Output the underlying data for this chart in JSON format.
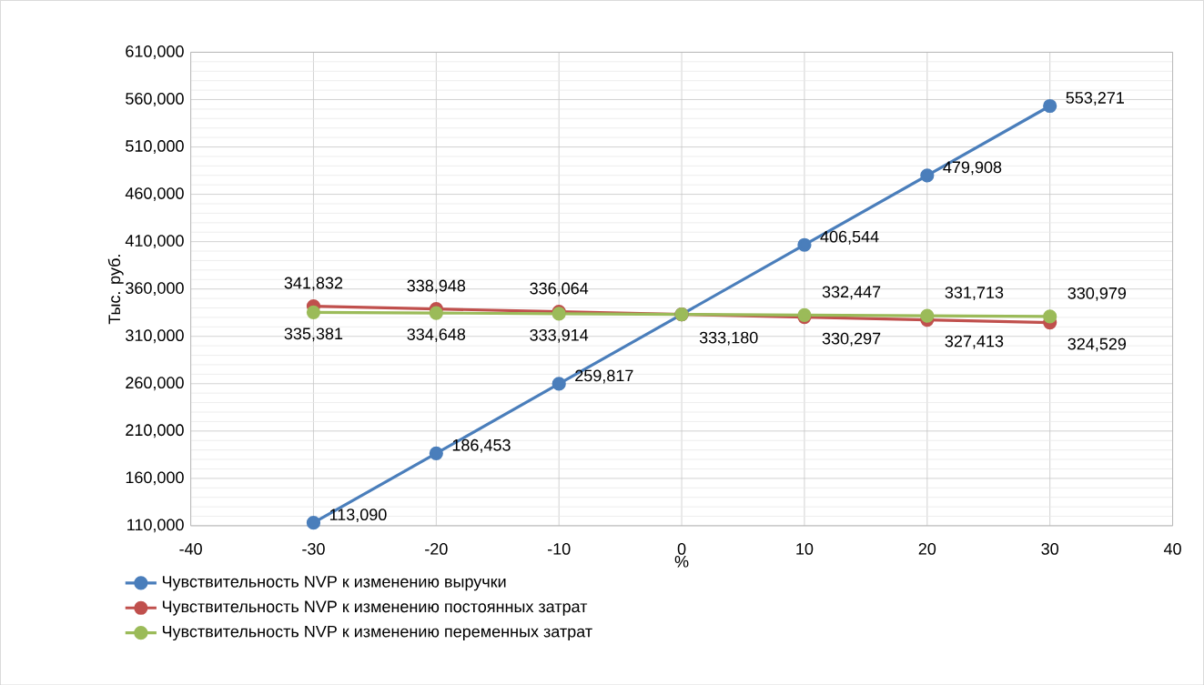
{
  "chart_data": {
    "type": "line",
    "xlabel": "%",
    "ylabel": "Тыс. руб.",
    "x": [
      -30,
      -20,
      -10,
      0,
      10,
      20,
      30
    ],
    "xlim": [
      -40,
      40
    ],
    "xticks": [
      -40,
      -30,
      -20,
      -10,
      0,
      10,
      20,
      30,
      40
    ],
    "ylim": [
      110000,
      610000
    ],
    "yticks": [
      {
        "value": 110000,
        "label": "110,000"
      },
      {
        "value": 160000,
        "label": "160,000"
      },
      {
        "value": 210000,
        "label": "210,000"
      },
      {
        "value": 260000,
        "label": "260,000"
      },
      {
        "value": 310000,
        "label": "310,000"
      },
      {
        "value": 360000,
        "label": "360,000"
      },
      {
        "value": 410000,
        "label": "410,000"
      },
      {
        "value": 460000,
        "label": "460,000"
      },
      {
        "value": 510000,
        "label": "510,000"
      },
      {
        "value": 560000,
        "label": "560,000"
      },
      {
        "value": 610000,
        "label": "610,000"
      }
    ],
    "grid": true,
    "legend": "bottom",
    "marker": "circle",
    "line_style": "solid",
    "series": [
      {
        "name": "Чувствительность NVP к изменению выручки",
        "color": "#4a7ebb",
        "values": [
          113090,
          186453,
          259817,
          333180,
          406544,
          479908,
          553271
        ],
        "value_labels": [
          "113,090",
          "186,453",
          "259,817",
          null,
          "406,544",
          "479,908",
          "553,271"
        ]
      },
      {
        "name": "Чувствительность NVP к изменению постоянных затрат",
        "color": "#c0504d",
        "values": [
          341832,
          338948,
          336064,
          333180,
          330297,
          327413,
          324529
        ],
        "value_labels": [
          "341,832",
          "338,948",
          "336,064",
          null,
          "330,297",
          "327,413",
          "324,529"
        ]
      },
      {
        "name": "Чувствительность NVP к изменению переменных затрат",
        "color": "#9bbb59",
        "values": [
          335381,
          334648,
          333914,
          333180,
          332447,
          331713,
          330979
        ],
        "value_labels": [
          "335,381",
          "334,648",
          "333,914",
          "333,180",
          "332,447",
          "331,713",
          "330,979"
        ]
      }
    ]
  }
}
